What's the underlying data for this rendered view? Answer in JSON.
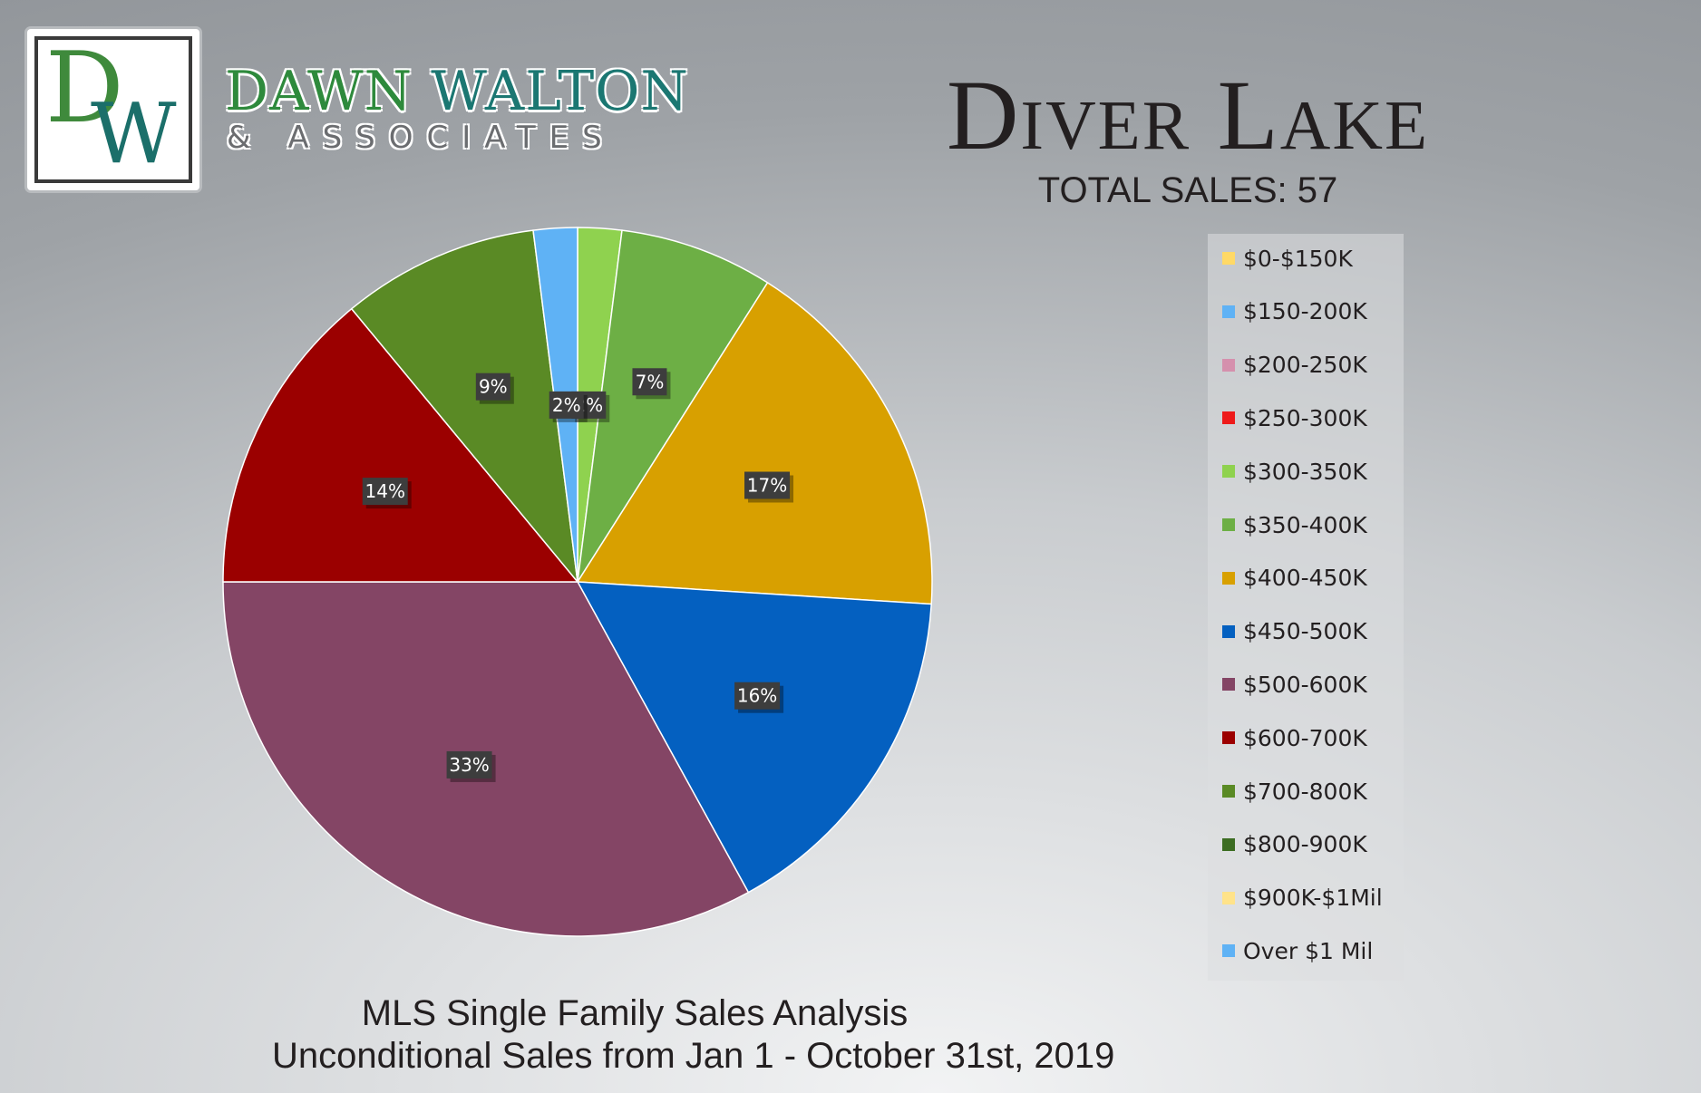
{
  "brand": {
    "logo_letters": [
      "D",
      "W"
    ],
    "name_part1": "DAWN ",
    "name_part2": "WALTON",
    "subtitle": "& ASSOCIATES",
    "colors": {
      "green": "#2e8a3c",
      "teal": "#1b7772"
    }
  },
  "header": {
    "title": "Diver Lake",
    "total_sales": "TOTAL SALES: 57"
  },
  "footer": {
    "line1": "MLS Single Family Sales Analysis",
    "line2": "Unconditional Sales from Jan 1 - October 31st, 2019"
  },
  "chart_data": {
    "type": "pie",
    "title": "Diver Lake",
    "legend_position": "right",
    "slices": [
      {
        "label": "$0-$150K",
        "value": 0,
        "color": "#ffd966"
      },
      {
        "label": "$150-200K",
        "value": 0,
        "color": "#5fb2f5"
      },
      {
        "label": "$200-250K",
        "value": 0,
        "color": "#d590ad"
      },
      {
        "label": "$250-300K",
        "value": 0,
        "color": "#ee1a1a"
      },
      {
        "label": "$300-350K",
        "value": 2,
        "display": "2%",
        "color": "#8fd24f"
      },
      {
        "label": "$350-400K",
        "value": 7,
        "display": "7%",
        "color": "#6daf45"
      },
      {
        "label": "$400-450K",
        "value": 17,
        "display": "17%",
        "color": "#d8a000"
      },
      {
        "label": "$450-500K",
        "value": 16,
        "display": "16%",
        "color": "#0460c0"
      },
      {
        "label": "$500-600K",
        "value": 33,
        "display": "33%",
        "color": "#844565"
      },
      {
        "label": "$600-700K",
        "value": 14,
        "display": "14%",
        "color": "#9b0000"
      },
      {
        "label": "$700-800K",
        "value": 9,
        "display": "9%",
        "color": "#5a8a25"
      },
      {
        "label": "$800-900K",
        "value": 0,
        "color": "#3c6d22"
      },
      {
        "label": "$900K-$1Mil",
        "value": 0,
        "color": "#ffe38a"
      },
      {
        "label": "Over $1 Mil",
        "value": 2,
        "display": "2%",
        "color": "#5fb2f5"
      }
    ]
  }
}
